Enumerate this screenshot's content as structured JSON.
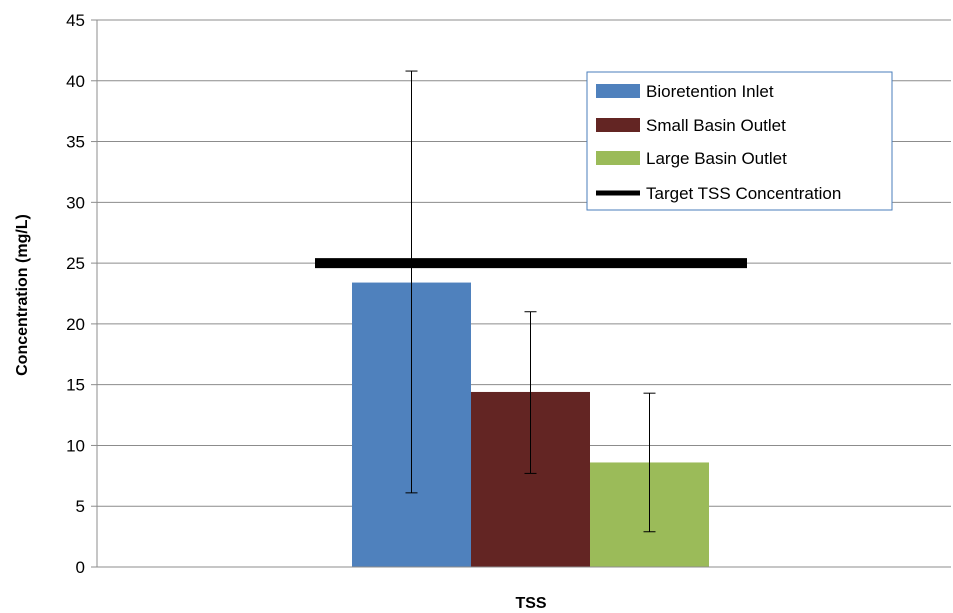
{
  "chart_data": {
    "type": "bar",
    "xlabel": "TSS",
    "ylabel": "Concentration (mg/L)",
    "ylim": [
      0,
      45
    ],
    "yticks": [
      0,
      5,
      10,
      15,
      20,
      25,
      30,
      35,
      40,
      45
    ],
    "grid": true,
    "legend_position": "top-right",
    "series": [
      {
        "name": "Bioretention Inlet",
        "value": 23.4,
        "error_low": 6.1,
        "error_high": 40.8,
        "color": "#4f81bd"
      },
      {
        "name": "Small Basin Outlet",
        "value": 14.4,
        "error_low": 7.7,
        "error_high": 21.0,
        "color": "#632523"
      },
      {
        "name": "Large Basin Outlet",
        "value": 8.6,
        "error_low": 2.9,
        "error_high": 14.3,
        "color": "#9bbb59"
      }
    ],
    "target": {
      "name": "Target TSS Concentration",
      "value": 25,
      "color": "#000000"
    }
  }
}
